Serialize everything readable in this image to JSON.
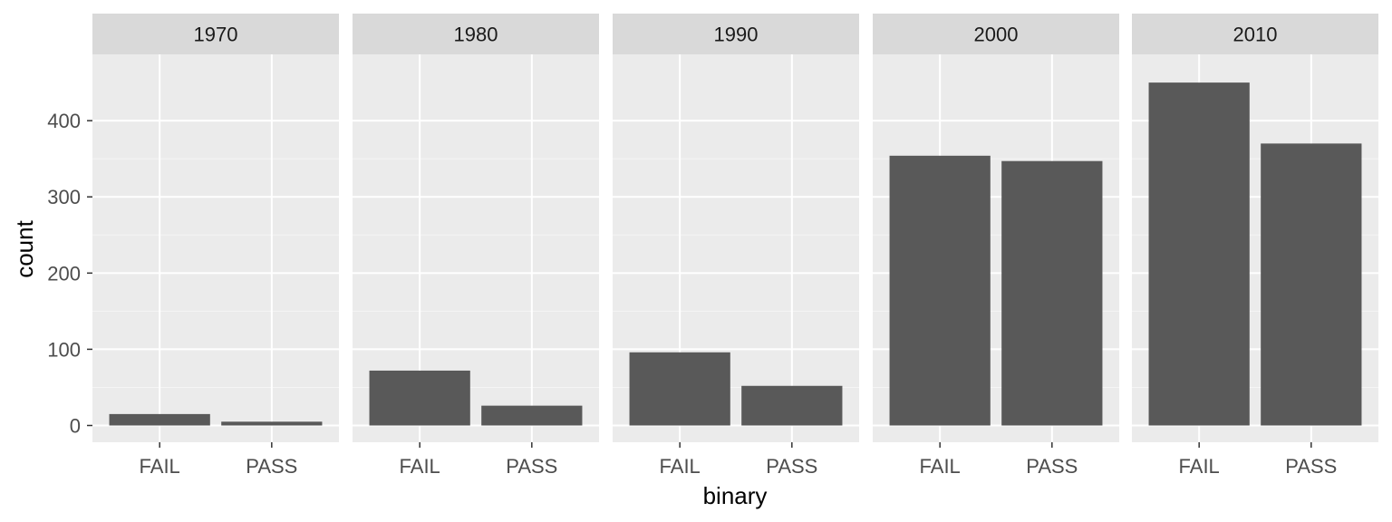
{
  "chart_data": {
    "type": "bar",
    "facet_variable": "decade",
    "facets": [
      "1970",
      "1980",
      "1990",
      "2000",
      "2010"
    ],
    "categories": [
      "FAIL",
      "PASS"
    ],
    "values": [
      [
        15,
        5
      ],
      [
        72,
        26
      ],
      [
        96,
        52
      ],
      [
        354,
        347
      ],
      [
        450,
        370
      ]
    ],
    "xlabel": "binary",
    "ylabel": "count",
    "ylim": [
      -22,
      487
    ],
    "yticks": [
      0,
      100,
      200,
      300,
      400
    ],
    "ytick_labels": [
      "0",
      "100",
      "200",
      "300",
      "400"
    ],
    "grid": true,
    "colors": {
      "bar": "#595959",
      "panel_background": "#ebebeb",
      "strip_background": "#d9d9d9",
      "grid_major": "#ffffff",
      "grid_minor": "#f5f5f5",
      "tick": "#333333"
    }
  }
}
